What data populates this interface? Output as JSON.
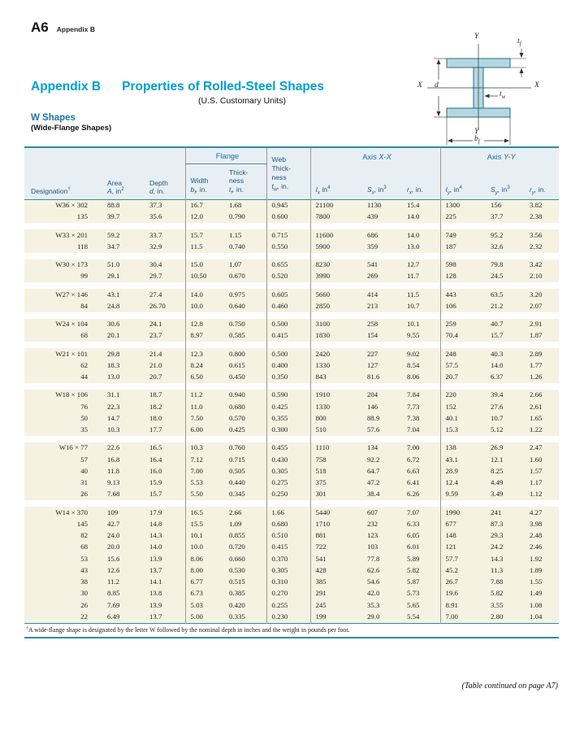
{
  "page": {
    "page_number": "A6",
    "running_head": "Appendix B",
    "continued_note": "(Table continued on page A7)"
  },
  "title": {
    "label": "Appendix B",
    "text": "Properties of Rolled-Steel Shapes",
    "subtitle": "(U.S. Customary Units)",
    "section": "W Shapes",
    "section_note": "(Wide-Flange Shapes)"
  },
  "diagram": {
    "labels": {
      "y_top": "*Y*",
      "y_bottom": "*Y*",
      "x_left": "*X*",
      "x_right": "*X*",
      "d": "*d*",
      "tf": "*t~f~*",
      "tw": "*t~w~*",
      "bf": "*b~f~*"
    }
  },
  "table": {
    "group_headers": {
      "flange": "Flange",
      "axis_xx": "Axis *X-X*",
      "axis_yy": "Axis *Y-Y*"
    },
    "headers": {
      "designation": "Designation^†^",
      "area": "Area\n*A,* in^2^",
      "depth": "Depth\n*d,* in.",
      "width": "Width\n*b~f~,* in.",
      "flange_thickness": "Thick-\nness\n*t~f~,* in.",
      "web_thickness": "Web\nThick-\nness\n*t~w~,* in.",
      "ix": "*I~x~* in^4^",
      "sx": "*S~x~,* in^3^",
      "rx": "*r~x~,* in.",
      "iy": "*I~y~,* in^4^",
      "sy": "*S~y~,* in^3^",
      "ry": "*r~y~,* in."
    },
    "footnote": "^†^A wide-flange shape is designated by the letter W followed by the nominal depth in inches and the weight in pounds per foot.",
    "groups": [
      {
        "rows": [
          [
            "W36 × 302",
            "88.8",
            "37.3",
            "16.7",
            "1.68",
            "0.945",
            "21100",
            "1130",
            "15.4",
            "1300",
            "156",
            "3.82"
          ],
          [
            "135",
            "39.7",
            "35.6",
            "12.0",
            "0.790",
            "0.600",
            "7800",
            "439",
            "14.0",
            "225",
            "37.7",
            "2.38"
          ]
        ]
      },
      {
        "rows": [
          [
            "W33 × 201",
            "59.2",
            "33.7",
            "15.7",
            "1.15",
            "0.715",
            "11600",
            "686",
            "14.0",
            "749",
            "95.2",
            "3.56"
          ],
          [
            "118",
            "34.7",
            "32.9",
            "11.5",
            "0.740",
            "0.550",
            "5900",
            "359",
            "13.0",
            "187",
            "32.6",
            "2.32"
          ]
        ]
      },
      {
        "rows": [
          [
            "W30 × 173",
            "51.0",
            "30.4",
            "15.0",
            "1.07",
            "0.655",
            "8230",
            "541",
            "12.7",
            "598",
            "79.8",
            "3.42"
          ],
          [
            "99",
            "29.1",
            "29.7",
            "10.50",
            "0.670",
            "0.520",
            "3990",
            "269",
            "11.7",
            "128",
            "24.5",
            "2.10"
          ]
        ]
      },
      {
        "rows": [
          [
            "W27 × 146",
            "43.1",
            "27.4",
            "14.0",
            "0.975",
            "0.605",
            "5660",
            "414",
            "11.5",
            "443",
            "63.5",
            "3.20"
          ],
          [
            "84",
            "24.8",
            "26.70",
            "10.0",
            "0.640",
            "0.460",
            "2850",
            "213",
            "10.7",
            "106",
            "21.2",
            "2.07"
          ]
        ]
      },
      {
        "rows": [
          [
            "W24 × 104",
            "30.6",
            "24.1",
            "12.8",
            "0.750",
            "0.500",
            "3100",
            "258",
            "10.1",
            "259",
            "40.7",
            "2.91"
          ],
          [
            "68",
            "20.1",
            "23.7",
            "8.97",
            "0.585",
            "0.415",
            "1830",
            "154",
            "9.55",
            "70.4",
            "15.7",
            "1.87"
          ]
        ]
      },
      {
        "rows": [
          [
            "W21 × 101",
            "29.8",
            "21.4",
            "12.3",
            "0.800",
            "0.500",
            "2420",
            "227",
            "9.02",
            "248",
            "40.3",
            "2.89"
          ],
          [
            "62",
            "18.3",
            "21.0",
            "8.24",
            "0.615",
            "0.400",
            "1330",
            "127",
            "8.54",
            "57.5",
            "14.0",
            "1.77"
          ],
          [
            "44",
            "13.0",
            "20.7",
            "6.50",
            "0.450",
            "0.350",
            "843",
            "81.6",
            "8.06",
            "20.7",
            "6.37",
            "1.26"
          ]
        ]
      },
      {
        "rows": [
          [
            "W18 × 106",
            "31.1",
            "18.7",
            "11.2",
            "0.940",
            "0.590",
            "1910",
            "204",
            "7.84",
            "220",
            "39.4",
            "2.66"
          ],
          [
            "76",
            "22.3",
            "18.2",
            "11.0",
            "0.680",
            "0.425",
            "1330",
            "146",
            "7.73",
            "152",
            "27.6",
            "2.61"
          ],
          [
            "50",
            "14.7",
            "18.0",
            "7.50",
            "0.570",
            "0.355",
            "800",
            "88.9",
            "7.38",
            "40.1",
            "10.7",
            "1.65"
          ],
          [
            "35",
            "10.3",
            "17.7",
            "6.00",
            "0.425",
            "0.300",
            "510",
            "57.6",
            "7.04",
            "15.3",
            "5.12",
            "1.22"
          ]
        ]
      },
      {
        "rows": [
          [
            "W16 × 77",
            "22.6",
            "16.5",
            "10.3",
            "0.760",
            "0.455",
            "1110",
            "134",
            "7.00",
            "138",
            "26.9",
            "2.47"
          ],
          [
            "57",
            "16.8",
            "16.4",
            "7.12",
            "0.715",
            "0.430",
            "758",
            "92.2",
            "6.72",
            "43.1",
            "12.1",
            "1.60"
          ],
          [
            "40",
            "11.8",
            "16.0",
            "7.00",
            "0.505",
            "0.305",
            "518",
            "64.7",
            "6.63",
            "28.9",
            "8.25",
            "1.57"
          ],
          [
            "31",
            "9.13",
            "15.9",
            "5.53",
            "0.440",
            "0.275",
            "375",
            "47.2",
            "6.41",
            "12.4",
            "4.49",
            "1.17"
          ],
          [
            "26",
            "7.68",
            "15.7",
            "5.50",
            "0.345",
            "0.250",
            "301",
            "38.4",
            "6.26",
            "9.59",
            "3.49",
            "1.12"
          ]
        ]
      },
      {
        "rows": [
          [
            "W14 × 370",
            "109",
            "17.9",
            "16.5",
            "2.66",
            "1.66",
            "5440",
            "607",
            "7.07",
            "1990",
            "241",
            "4.27"
          ],
          [
            "145",
            "42.7",
            "14.8",
            "15.5",
            "1.09",
            "0.680",
            "1710",
            "232",
            "6.33",
            "677",
            "87.3",
            "3.98"
          ],
          [
            "82",
            "24.0",
            "14.3",
            "10.1",
            "0.855",
            "0.510",
            "881",
            "123",
            "6.05",
            "148",
            "29.3",
            "2.48"
          ],
          [
            "68",
            "20.0",
            "14.0",
            "10.0",
            "0.720",
            "0.415",
            "722",
            "103",
            "6.01",
            "121",
            "24.2",
            "2.46"
          ],
          [
            "53",
            "15.6",
            "13.9",
            "8.06",
            "0.660",
            "0.370",
            "541",
            "77.8",
            "5.89",
            "57.7",
            "14.3",
            "1.92"
          ],
          [
            "43",
            "12.6",
            "13.7",
            "8.00",
            "0.530",
            "0.305",
            "428",
            "62.6",
            "5.82",
            "45.2",
            "11.3",
            "1.89"
          ],
          [
            "38",
            "11.2",
            "14.1",
            "6.77",
            "0.515",
            "0.310",
            "385",
            "54.6",
            "5.87",
            "26.7",
            "7.88",
            "1.55"
          ],
          [
            "30",
            "8.85",
            "13.8",
            "6.73",
            "0.385",
            "0.270",
            "291",
            "42.0",
            "5.73",
            "19.6",
            "5.82",
            "1.49"
          ],
          [
            "26",
            "7.69",
            "13.9",
            "5.03",
            "0.420",
            "0.255",
            "245",
            "35.3",
            "5.65",
            "8.91",
            "3.55",
            "1.08"
          ],
          [
            "22",
            "6.49",
            "13.7",
            "5.00",
            "0.335",
            "0.230",
            "199",
            "29.0",
            "5.54",
            "7.00",
            "2.80",
            "1.04"
          ]
        ]
      }
    ]
  }
}
